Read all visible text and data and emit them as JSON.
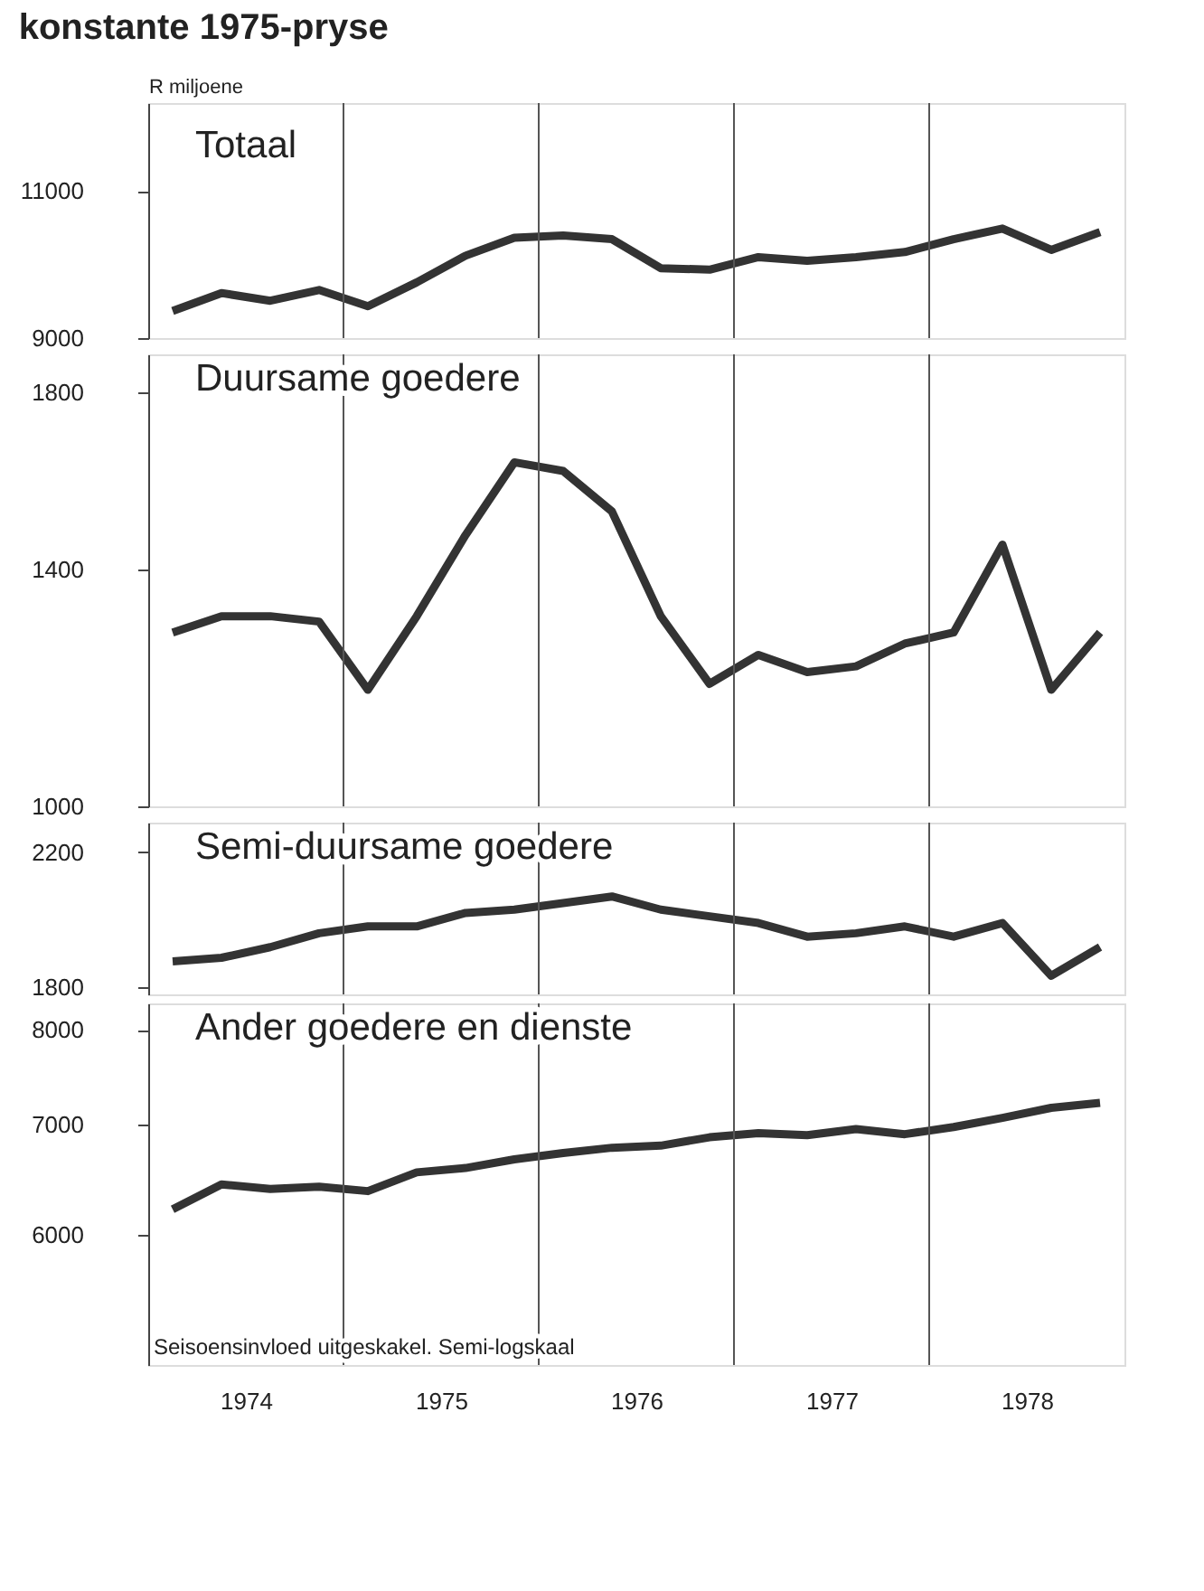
{
  "chart_data": [
    {
      "type": "line",
      "title": "konstante 1975-pryse",
      "ylabel": "R miljoene",
      "log": true,
      "tick_labels": "y",
      "grid": false,
      "x": [
        1974.125,
        1974.375,
        1974.625,
        1974.875,
        1975.125,
        1975.375,
        1975.625,
        1975.875,
        1976.125,
        1976.375,
        1976.625,
        1976.875,
        1977.125,
        1977.375,
        1977.625,
        1977.875,
        1978.125,
        1978.375,
        1978.625,
        1978.875
      ],
      "xlim": [
        1974,
        1979
      ],
      "ylim": [
        9000,
        12400
      ],
      "yticks": [
        9000,
        11000
      ],
      "ref_lines": [
        {
          "axis": "x",
          "value": 1975
        },
        {
          "axis": "x",
          "value": 1976
        },
        {
          "axis": "x",
          "value": 1977
        },
        {
          "axis": "x",
          "value": 1978
        }
      ],
      "series": [
        {
          "name": "Totaal",
          "color": "#333333",
          "values": [
            9340,
            9570,
            9470,
            9610,
            9400,
            9710,
            10070,
            10320,
            10350,
            10300,
            9900,
            9880,
            10050,
            10000,
            10050,
            10120,
            10300,
            10450,
            10150,
            10400
          ]
        }
      ]
    },
    {
      "type": "line",
      "log": true,
      "tick_labels": "y",
      "grid": false,
      "x": [
        1974.125,
        1974.375,
        1974.625,
        1974.875,
        1975.125,
        1975.375,
        1975.625,
        1975.875,
        1976.125,
        1976.375,
        1976.625,
        1976.875,
        1977.125,
        1977.375,
        1977.625,
        1977.875,
        1978.125,
        1978.375,
        1978.625,
        1978.875
      ],
      "xlim": [
        1974,
        1979
      ],
      "ylim": [
        1000,
        1900
      ],
      "yticks": [
        1000,
        1400,
        1800
      ],
      "ref_lines": [
        {
          "axis": "x",
          "value": 1975
        },
        {
          "axis": "x",
          "value": 1976
        },
        {
          "axis": "x",
          "value": 1977
        },
        {
          "axis": "x",
          "value": 1978
        }
      ],
      "series": [
        {
          "name": "Duursame goedere",
          "color": "#333333",
          "values": [
            1280,
            1310,
            1310,
            1300,
            1180,
            1310,
            1470,
            1630,
            1610,
            1520,
            1310,
            1190,
            1240,
            1210,
            1220,
            1260,
            1280,
            1450,
            1180,
            1280
          ]
        }
      ]
    },
    {
      "type": "line",
      "log": true,
      "tick_labels": "y",
      "grid": false,
      "x": [
        1974.125,
        1974.375,
        1974.625,
        1974.875,
        1975.125,
        1975.375,
        1975.625,
        1975.875,
        1976.125,
        1976.375,
        1976.625,
        1976.875,
        1977.125,
        1977.375,
        1977.625,
        1977.875,
        1978.125,
        1978.375,
        1978.625,
        1978.875
      ],
      "xlim": [
        1974,
        1979
      ],
      "ylim": [
        1780,
        2300
      ],
      "yticks": [
        1800,
        2200
      ],
      "ref_lines": [
        {
          "axis": "x",
          "value": 1975
        },
        {
          "axis": "x",
          "value": 1976
        },
        {
          "axis": "x",
          "value": 1977
        },
        {
          "axis": "x",
          "value": 1978
        }
      ],
      "series": [
        {
          "name": "Semi-duursame goedere",
          "color": "#333333",
          "values": [
            1870,
            1880,
            1910,
            1950,
            1970,
            1970,
            2010,
            2020,
            2040,
            2060,
            2020,
            2000,
            1980,
            1940,
            1950,
            1970,
            1940,
            1980,
            1830,
            1910
          ]
        }
      ]
    },
    {
      "type": "line",
      "log": true,
      "grid": false,
      "x": [
        1974.125,
        1974.375,
        1974.625,
        1974.875,
        1975.125,
        1975.375,
        1975.625,
        1975.875,
        1976.125,
        1976.375,
        1976.625,
        1976.875,
        1977.125,
        1977.375,
        1977.625,
        1977.875,
        1978.125,
        1978.375,
        1978.625,
        1978.875
      ],
      "xlim": [
        1974,
        1979
      ],
      "xticks": [
        {
          "value": 1974.5,
          "label": "1974"
        },
        {
          "value": 1975.5,
          "label": "1975"
        },
        {
          "value": 1976.5,
          "label": "1976"
        },
        {
          "value": 1977.5,
          "label": "1977"
        },
        {
          "value": 1978.5,
          "label": "1978"
        }
      ],
      "ylim": [
        5000,
        8300
      ],
      "yticks": [
        6000,
        7000,
        8000
      ],
      "ref_lines": [
        {
          "axis": "x",
          "value": 1975
        },
        {
          "axis": "x",
          "value": 1976
        },
        {
          "axis": "x",
          "value": 1977
        },
        {
          "axis": "x",
          "value": 1978
        }
      ],
      "annotations": [
        "Seisoensinvloed uitgeskakel. Semi-logskaal"
      ],
      "series": [
        {
          "name": "Ander goedere en dienste",
          "color": "#333333",
          "values": [
            6220,
            6440,
            6400,
            6420,
            6380,
            6550,
            6590,
            6670,
            6730,
            6780,
            6800,
            6880,
            6920,
            6900,
            6960,
            6910,
            6980,
            7070,
            7170,
            7220
          ]
        }
      ]
    }
  ]
}
